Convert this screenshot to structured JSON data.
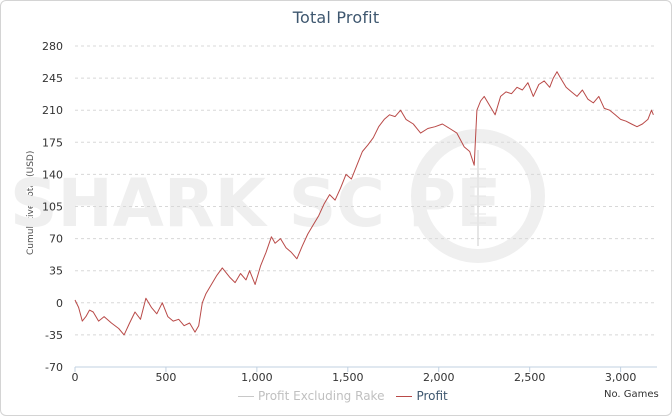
{
  "colors": {
    "profit": "#b94a48",
    "profit_excluding_rake": "#c8c8c8",
    "grid": "#d8d8d8",
    "axis": "#c0d0e0",
    "title": "#3e576f"
  },
  "watermark": {
    "text": "SHARK SC PE"
  },
  "legend": {
    "items": [
      {
        "label": "Profit Excluding Rake",
        "color": "#c8c8c8"
      },
      {
        "label": "Profit",
        "color": "#b94a48"
      }
    ]
  },
  "chart_data": {
    "type": "line",
    "title": "Total Profit",
    "ylabel": "Cumulative Total (USD)",
    "xlabel": "No. Games",
    "xlim": [
      0,
      3200
    ],
    "ylim": [
      -70,
      280
    ],
    "x_ticks": [
      0,
      500,
      1000,
      1500,
      2000,
      2500,
      3000
    ],
    "x_tick_labels": [
      "0",
      "500",
      "1,000",
      "1,500",
      "2,000",
      "2,500",
      "3,000"
    ],
    "y_ticks": [
      -70,
      -35,
      0,
      35,
      70,
      105,
      140,
      175,
      210,
      245,
      280
    ],
    "grid": true,
    "legend_position": "bottom-center",
    "series": [
      {
        "name": "Profit Excluding Rake",
        "x": [],
        "y": []
      },
      {
        "name": "Profit",
        "x": [
          0,
          20,
          40,
          60,
          80,
          100,
          130,
          160,
          200,
          240,
          270,
          300,
          330,
          360,
          390,
          420,
          450,
          480,
          510,
          540,
          570,
          600,
          630,
          660,
          680,
          700,
          720,
          750,
          780,
          810,
          850,
          880,
          910,
          940,
          960,
          990,
          1020,
          1050,
          1080,
          1100,
          1130,
          1160,
          1190,
          1220,
          1250,
          1280,
          1310,
          1340,
          1370,
          1400,
          1430,
          1460,
          1490,
          1520,
          1550,
          1580,
          1610,
          1640,
          1670,
          1700,
          1730,
          1760,
          1790,
          1820,
          1860,
          1900,
          1940,
          1980,
          2020,
          2060,
          2100,
          2140,
          2170,
          2195,
          2210,
          2230,
          2250,
          2280,
          2310,
          2340,
          2370,
          2400,
          2430,
          2460,
          2490,
          2520,
          2550,
          2580,
          2610,
          2630,
          2650,
          2670,
          2700,
          2730,
          2760,
          2790,
          2820,
          2850,
          2880,
          2910,
          2940,
          2970,
          3000,
          3030,
          3060,
          3090,
          3120,
          3150,
          3170,
          3180
        ],
        "y": [
          3,
          -5,
          -20,
          -15,
          -8,
          -10,
          -20,
          -15,
          -22,
          -28,
          -35,
          -22,
          -10,
          -18,
          5,
          -5,
          -12,
          0,
          -15,
          -20,
          -18,
          -25,
          -22,
          -32,
          -25,
          0,
          10,
          20,
          30,
          38,
          28,
          22,
          32,
          25,
          35,
          20,
          40,
          55,
          72,
          65,
          70,
          60,
          55,
          48,
          62,
          75,
          85,
          95,
          108,
          118,
          112,
          125,
          140,
          135,
          150,
          165,
          172,
          180,
          192,
          200,
          205,
          203,
          210,
          200,
          195,
          185,
          190,
          192,
          195,
          190,
          185,
          170,
          165,
          150,
          210,
          220,
          225,
          215,
          205,
          225,
          230,
          228,
          235,
          232,
          240,
          225,
          238,
          242,
          235,
          245,
          252,
          245,
          235,
          230,
          225,
          232,
          222,
          218,
          225,
          212,
          210,
          205,
          200,
          198,
          195,
          192,
          195,
          200,
          210,
          205
        ]
      }
    ]
  }
}
